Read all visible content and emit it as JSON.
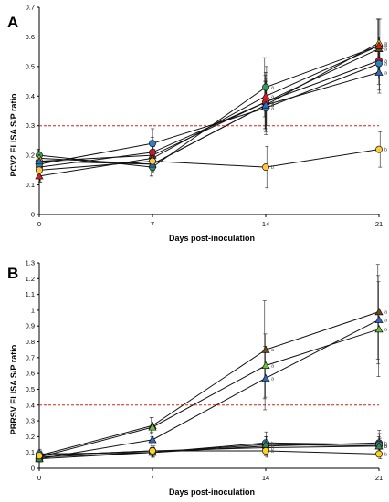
{
  "chart_data": [
    {
      "type": "line",
      "panel_label": "A",
      "xlabel": "Days post-inoculation",
      "ylabel": "PCV2 ELISA S/P ratio",
      "x": [
        0,
        7,
        14,
        21
      ],
      "x_ticks": [
        "0",
        "7",
        "14",
        "21"
      ],
      "ylim": [
        0,
        0.7
      ],
      "y_ticks": [
        "0",
        "0.1",
        "0.2",
        "0.3",
        "0.4",
        "0.5",
        "0.6",
        "0.7"
      ],
      "cutoff": 0.3,
      "cutoff_color": "#d62020",
      "grid": false,
      "series": [
        {
          "marker": "circle",
          "color": "#2aa05a",
          "values": [
            0.2,
            0.16,
            0.43,
            0.57
          ],
          "errors": [
            0.02,
            0.03,
            0.1,
            0.09
          ],
          "letters": [
            "",
            "",
            "a",
            "a"
          ]
        },
        {
          "marker": "triangle",
          "color": "#ffd21f",
          "values": [
            0.19,
            0.17,
            0.37,
            0.58
          ],
          "errors": [
            0.03,
            0.04,
            0.08,
            0.08
          ],
          "letters": [
            "",
            "",
            "a",
            "a"
          ]
        },
        {
          "marker": "triangle",
          "color": "#6b4a1a",
          "values": [
            0.18,
            0.2,
            0.38,
            0.56
          ],
          "errors": [
            0.03,
            0.05,
            0.09,
            0.1
          ],
          "letters": [
            "",
            "",
            "a",
            "a"
          ]
        },
        {
          "marker": "circle",
          "color": "#c8192e",
          "values": [
            0.16,
            0.21,
            0.38,
            0.52
          ],
          "errors": [
            0.02,
            0.05,
            0.1,
            0.08
          ],
          "letters": [
            "",
            "",
            "a",
            "a"
          ]
        },
        {
          "marker": "circle",
          "color": "#2b82c9",
          "values": [
            0.17,
            0.24,
            0.36,
            0.51
          ],
          "errors": [
            0.03,
            0.05,
            0.09,
            0.09
          ],
          "letters": [
            "",
            "",
            "a",
            "a"
          ]
        },
        {
          "marker": "triangle",
          "color": "#2f6bbf",
          "values": [
            0.18,
            0.17,
            0.37,
            0.48
          ],
          "errors": [
            0.02,
            0.03,
            0.09,
            0.07
          ],
          "letters": [
            "",
            "",
            "a",
            "a"
          ]
        },
        {
          "marker": "triangle",
          "color": "#d42020",
          "values": [
            0.13,
            0.19,
            0.4,
            0.57
          ],
          "errors": [
            0.02,
            0.04,
            0.1,
            0.09
          ],
          "letters": [
            "",
            "",
            "a",
            "a"
          ]
        },
        {
          "marker": "circle",
          "color": "#ffc83a",
          "values": [
            0.15,
            0.18,
            0.16,
            0.22
          ],
          "errors": [
            0.04,
            0.04,
            0.07,
            0.06
          ],
          "letters": [
            "",
            "",
            "b",
            "b"
          ]
        }
      ]
    },
    {
      "type": "line",
      "panel_label": "B",
      "xlabel": "Days post-inoculation",
      "ylabel": "PRRSV ELISA S/P ratio",
      "x": [
        0,
        7,
        14,
        21
      ],
      "x_ticks": [
        "0",
        "7",
        "14",
        "21"
      ],
      "ylim": [
        0,
        1.3
      ],
      "y_ticks": [
        "0",
        "0.1",
        "0.2",
        "0.3",
        "0.4",
        "0.5",
        "0.6",
        "0.7",
        "0.8",
        "0.9",
        "1",
        "1.1",
        "1.2",
        "1.3"
      ],
      "cutoff": 0.4,
      "cutoff_color": "#d62020",
      "grid": false,
      "series": [
        {
          "marker": "triangle",
          "color": "#6b4a1a",
          "values": [
            0.08,
            0.27,
            0.75,
            0.99
          ],
          "errors": [
            0.03,
            0.05,
            0.31,
            0.3
          ],
          "letters": [
            "",
            "",
            "a",
            "a"
          ]
        },
        {
          "marker": "triangle",
          "color": "#2f6bbf",
          "values": [
            0.06,
            0.18,
            0.57,
            0.94
          ],
          "errors": [
            0.02,
            0.05,
            0.2,
            0.28
          ],
          "letters": [
            "",
            "",
            "a",
            "a"
          ]
        },
        {
          "marker": "triangle",
          "color": "#6fbf3a",
          "values": [
            0.07,
            0.26,
            0.65,
            0.88
          ],
          "errors": [
            0.02,
            0.06,
            0.2,
            0.3
          ],
          "letters": [
            "",
            "",
            "a",
            "a"
          ]
        },
        {
          "marker": "circle",
          "color": "#2aa05a",
          "values": [
            0.08,
            0.11,
            0.13,
            0.14
          ],
          "errors": [
            0.02,
            0.03,
            0.05,
            0.06
          ],
          "letters": [
            "",
            "",
            "b",
            "b"
          ]
        },
        {
          "marker": "circle",
          "color": "#6b4a1a",
          "values": [
            0.07,
            0.1,
            0.14,
            0.16
          ],
          "errors": [
            0.02,
            0.03,
            0.06,
            0.08
          ],
          "letters": [
            "",
            "",
            "b",
            "b"
          ]
        },
        {
          "marker": "circle",
          "color": "#2b82c9",
          "values": [
            0.09,
            0.1,
            0.16,
            0.15
          ],
          "errors": [
            0.03,
            0.03,
            0.07,
            0.07
          ],
          "letters": [
            "",
            "",
            "b",
            "b"
          ]
        },
        {
          "marker": "triangle",
          "color": "#3a8a3a",
          "values": [
            0.06,
            0.1,
            0.15,
            0.14
          ],
          "errors": [
            0.02,
            0.03,
            0.05,
            0.05
          ],
          "letters": [
            "",
            "",
            "b",
            "b"
          ]
        },
        {
          "marker": "circle",
          "color": "#ffd21f",
          "values": [
            0.08,
            0.11,
            0.11,
            0.09
          ],
          "errors": [
            0.03,
            0.03,
            0.04,
            0.03
          ],
          "letters": [
            "",
            "",
            "b",
            "b"
          ]
        }
      ]
    }
  ]
}
